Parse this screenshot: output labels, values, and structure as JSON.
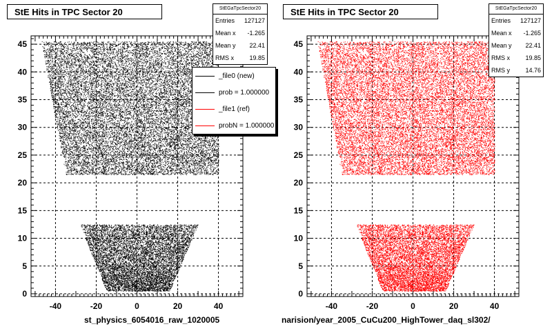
{
  "chart_data": [
    {
      "type": "scatter",
      "title": "StE Hits in TPC Sector 20",
      "xlabel": "",
      "ylabel": "",
      "xlim": [
        -52,
        52
      ],
      "ylim": [
        -0.5,
        46.5
      ],
      "x_ticks": [
        -40,
        -20,
        0,
        20,
        40
      ],
      "y_ticks": [
        0,
        5,
        10,
        15,
        20,
        25,
        30,
        35,
        40,
        45
      ],
      "grid": true,
      "marker_color": "#000000",
      "regions": [
        {
          "y": [
            21.5,
            45.5
          ],
          "x_at_bottom": [
            -35,
            40
          ],
          "x_at_top": [
            -47,
            40
          ]
        },
        {
          "y": [
            0.5,
            12.5
          ],
          "x_at_bottom": [
            -15,
            16
          ],
          "x_at_top": [
            -28,
            30
          ]
        }
      ],
      "stats": {
        "name": "StEGaTpcSector20",
        "entries_label": "Entries",
        "entries": "127127",
        "mean_x_label": "Mean x",
        "mean_x": "-1.265",
        "mean_y_label": "Mean y",
        "mean_y": "22.41",
        "rms_x_label": "RMS x",
        "rms_x": "19.85"
      },
      "legend": {
        "placement": "top-right",
        "entries": [
          {
            "label": "_file0 (new)",
            "color": "#000000"
          },
          {
            "label": "prob = 1.000000",
            "color": "#000000"
          },
          {
            "label": "_file1 (ref)",
            "color": "#ff0000"
          },
          {
            "label": "probN = 1.000000",
            "color": "#ff0000"
          }
        ]
      },
      "footer": "st_physics_6054016_raw_1020005"
    },
    {
      "type": "scatter",
      "title": "StE Hits in TPC Sector 20",
      "xlabel": "",
      "ylabel": "",
      "xlim": [
        -52,
        52
      ],
      "ylim": [
        -0.5,
        46.5
      ],
      "x_ticks": [
        -40,
        -20,
        0,
        20,
        40
      ],
      "y_ticks": [
        0,
        5,
        10,
        15,
        20,
        25,
        30,
        35,
        40,
        45
      ],
      "grid": true,
      "marker_color": "#ff0000",
      "regions": [
        {
          "y": [
            21.5,
            45.5
          ],
          "x_at_bottom": [
            -35,
            40
          ],
          "x_at_top": [
            -47,
            40
          ]
        },
        {
          "y": [
            0.5,
            12.5
          ],
          "x_at_bottom": [
            -15,
            16
          ],
          "x_at_top": [
            -28,
            30
          ]
        }
      ],
      "stats": {
        "name": "StEGaTpcSector20",
        "entries_label": "Entries",
        "entries": "127127",
        "mean_x_label": "Mean x",
        "mean_x": "-1.265",
        "mean_y_label": "Mean y",
        "mean_y": "22.41",
        "rms_x_label": "RMS x",
        "rms_x": "19.85",
        "rms_y_label": "RMS y",
        "rms_y": "14.76"
      },
      "footer": "narision/year_2005_CuCu200_HighTower_daq_sl302/"
    }
  ]
}
